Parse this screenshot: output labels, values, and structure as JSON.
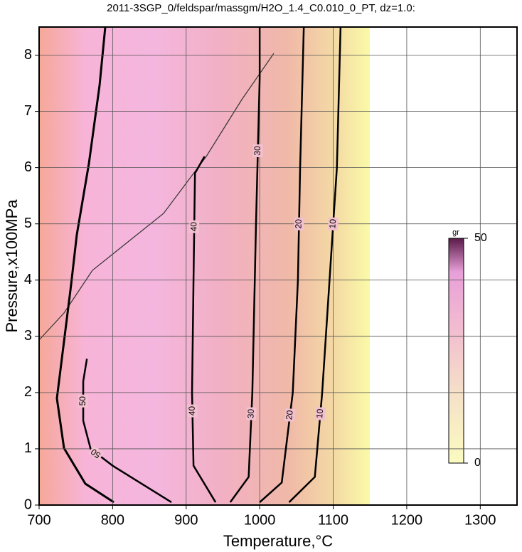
{
  "chart_data": {
    "type": "contour",
    "title": "2011-3SGP_0/feldspar/massgm/H2O_1.4_C0.010_0_PT, dz=1.0:",
    "x_label": "Temperature,°C",
    "y_label": "Pressure,x100MPa",
    "xlim": [
      700,
      1350
    ],
    "ylim": [
      0,
      8.5
    ],
    "xticks": [
      700,
      800,
      900,
      1000,
      1100,
      1200,
      1300
    ],
    "yticks": [
      0,
      1,
      2,
      3,
      4,
      5,
      6,
      7,
      8
    ],
    "grid": true,
    "color": "#000000",
    "contours": [
      {
        "level": 10,
        "x": [
          1040,
          1075,
          1085,
          1095,
          1105,
          1110
        ],
        "y": [
          0.05,
          0.5,
          2,
          4,
          6,
          8.5
        ]
      },
      {
        "level": 20,
        "x": [
          1000,
          1030,
          1045,
          1052,
          1055,
          1060
        ],
        "y": [
          0.05,
          0.4,
          2,
          4,
          6,
          8.5
        ]
      },
      {
        "level": 30,
        "x": [
          960,
          985,
          990,
          995,
          1000,
          1000
        ],
        "y": [
          0.05,
          0.5,
          2,
          5,
          7.6,
          8.5
        ]
      },
      {
        "level": 40,
        "x": [
          940,
          910,
          908,
          910,
          912,
          925
        ],
        "y": [
          0.05,
          0.7,
          2,
          4,
          5.9,
          6.2
        ]
      },
      {
        "level": 50,
        "x": [
          880,
          800,
          770,
          760,
          760,
          765
        ],
        "y": [
          0.05,
          0.7,
          1,
          1.5,
          2.2,
          2.6
        ]
      }
    ],
    "colorbar": {
      "label": "gr",
      "lim": [
        0,
        50
      ],
      "ticks": [
        0,
        50
      ]
    }
  }
}
